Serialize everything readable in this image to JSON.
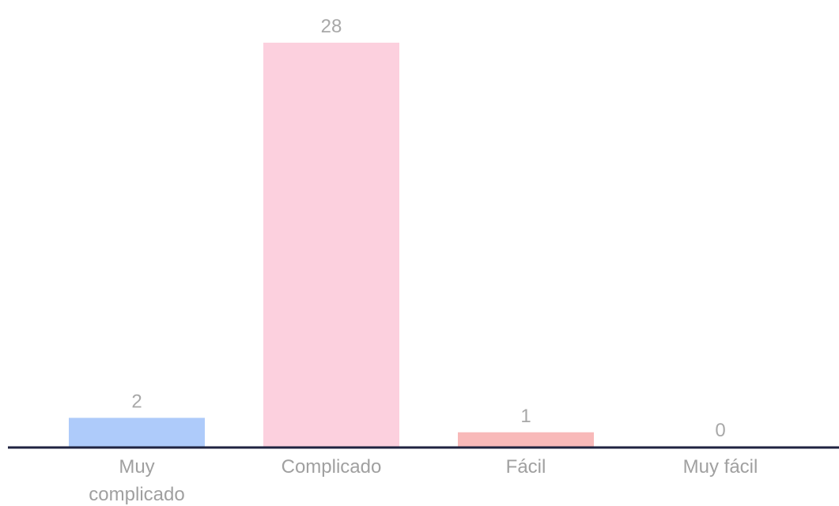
{
  "chart_data": {
    "type": "bar",
    "categories": [
      [
        "Muy",
        "complicado"
      ],
      [
        "Complicado"
      ],
      [
        "Fácil"
      ],
      [
        "Muy fácil"
      ]
    ],
    "values": [
      2,
      28,
      1,
      0
    ],
    "value_labels": [
      "2",
      "28",
      "1",
      "0"
    ],
    "colors": [
      "#aecbfa",
      "#fcd0de",
      "#f8b9b9",
      "#e7e7e7"
    ],
    "axis_color": "#1f2340",
    "title": "",
    "xlabel": "",
    "ylabel": "",
    "ylim": [
      0,
      28
    ],
    "grid": false,
    "legend": "none"
  }
}
